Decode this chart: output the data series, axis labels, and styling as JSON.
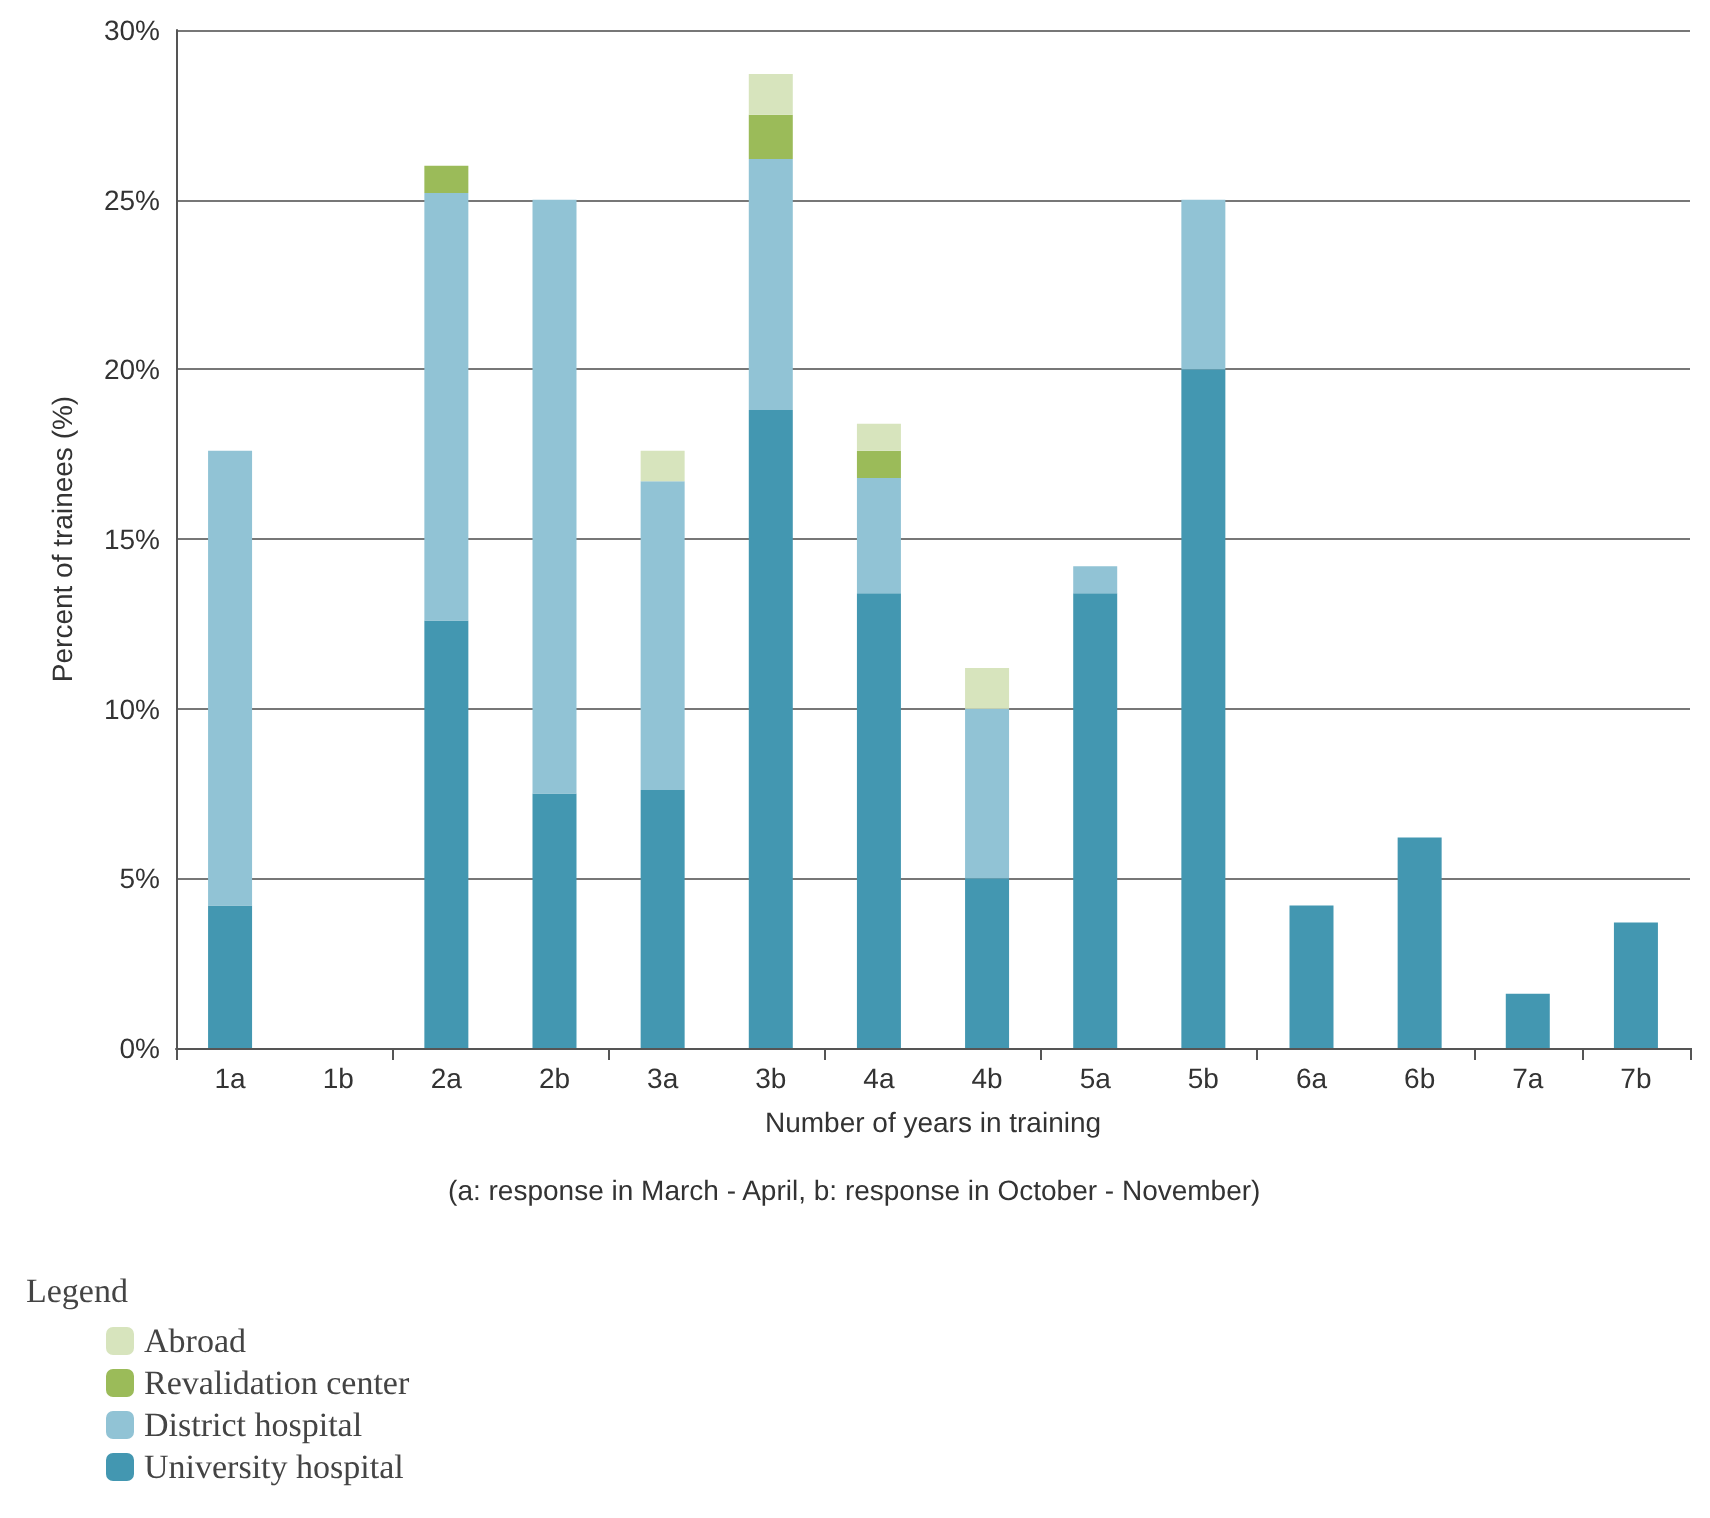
{
  "chart_data": {
    "type": "bar",
    "stacked": true,
    "xlabel": "Number of years in training",
    "ylabel": "Percent of trainees (%)",
    "annotations": [
      "(a: response in March - April, b: response in October - November)"
    ],
    "categories": [
      "1a",
      "1b",
      "2a",
      "2b",
      "3a",
      "3b",
      "4a",
      "4b",
      "5a",
      "5b",
      "6a",
      "6b",
      "7a",
      "7b"
    ],
    "series": [
      {
        "name": "University hospital",
        "color": "#4397b1",
        "values": [
          4.2,
          0,
          12.6,
          7.5,
          7.6,
          18.8,
          13.4,
          5.0,
          13.4,
          20.0,
          4.2,
          6.2,
          1.6,
          3.7
        ]
      },
      {
        "name": "District hospital",
        "color": "#91c3d5",
        "values": [
          13.4,
          0,
          12.6,
          17.5,
          9.1,
          7.4,
          3.4,
          5.0,
          0.8,
          5.0,
          0,
          0,
          0,
          0
        ]
      },
      {
        "name": "Revalidation center",
        "color": "#9bbb59",
        "values": [
          0,
          0,
          0.8,
          0,
          0,
          1.3,
          0.8,
          0,
          0,
          0,
          0,
          0,
          0,
          0
        ]
      },
      {
        "name": "Abroad",
        "color": "#d7e4bd",
        "values": [
          0,
          0,
          0,
          0,
          0.9,
          1.2,
          0.8,
          1.2,
          0,
          0,
          0,
          0,
          0,
          0
        ]
      }
    ],
    "ylim": [
      0,
      30
    ],
    "yticks": [
      {
        "value": 0,
        "label": "0%"
      },
      {
        "value": 5,
        "label": "5%"
      },
      {
        "value": 10,
        "label": "10%"
      },
      {
        "value": 15,
        "label": "15%"
      },
      {
        "value": 20,
        "label": "20%"
      },
      {
        "value": 25,
        "label": "25%"
      },
      {
        "value": 30,
        "label": "30%"
      }
    ],
    "grid": "y",
    "legend": "bottom left",
    "legend_title": "Legend"
  }
}
